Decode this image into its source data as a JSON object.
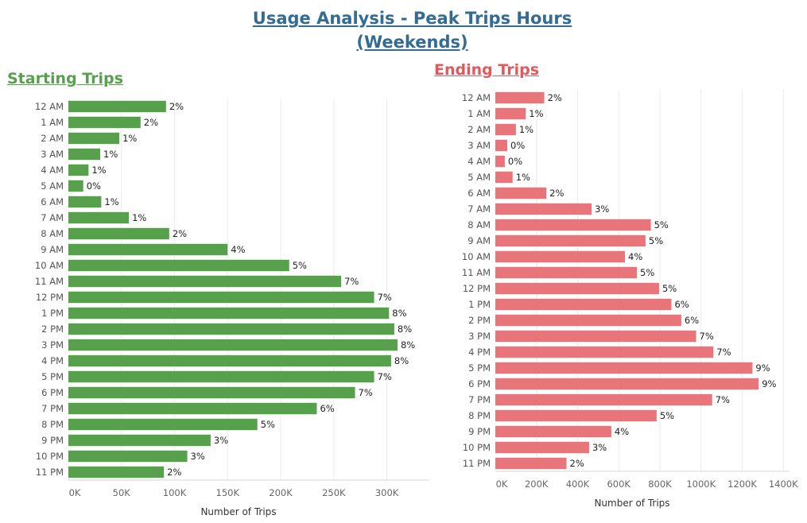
{
  "title_line1": "Usage Analysis - Peak Trips Hours",
  "title_line2": "(Weekends)",
  "colors": {
    "title": "#336b93",
    "starting": "#57a04c",
    "ending": "#e8757a"
  },
  "chart_data": [
    {
      "type": "bar",
      "orientation": "horizontal",
      "title": "Starting Trips",
      "xlabel": "Number of Trips",
      "xlim": [
        0,
        340000
      ],
      "xticks": [
        0,
        50000,
        100000,
        150000,
        200000,
        250000,
        300000
      ],
      "xtick_labels": [
        "0K",
        "50K",
        "100K",
        "150K",
        "200K",
        "250K",
        "300K"
      ],
      "categories": [
        "12 AM",
        "1 AM",
        "2 AM",
        "3 AM",
        "4 AM",
        "5 AM",
        "6 AM",
        "7 AM",
        "8 AM",
        "9 AM",
        "10 AM",
        "11 AM",
        "12 PM",
        "1 PM",
        "2 PM",
        "3 PM",
        "4 PM",
        "5 PM",
        "6 PM",
        "7 PM",
        "8 PM",
        "9 PM",
        "10 PM",
        "11 PM"
      ],
      "values": [
        92000,
        68000,
        48000,
        30000,
        19000,
        14000,
        31000,
        57000,
        95000,
        150000,
        208000,
        257000,
        288000,
        302000,
        307000,
        310000,
        304000,
        288000,
        270000,
        234000,
        178000,
        134000,
        112000,
        90000
      ],
      "labels": [
        "2%",
        "2%",
        "1%",
        "1%",
        "1%",
        "0%",
        "1%",
        "1%",
        "2%",
        "4%",
        "5%",
        "7%",
        "7%",
        "8%",
        "8%",
        "8%",
        "8%",
        "7%",
        "7%",
        "6%",
        "5%",
        "3%",
        "3%",
        "2%"
      ],
      "grid": true
    },
    {
      "type": "bar",
      "orientation": "horizontal",
      "title": "Ending Trips",
      "xlabel": "Number of Trips",
      "xlim": [
        0,
        1430000
      ],
      "xticks": [
        0,
        200000,
        400000,
        600000,
        800000,
        1000000,
        1200000,
        1400000
      ],
      "xtick_labels": [
        "0K",
        "200K",
        "400K",
        "600K",
        "800K",
        "1000K",
        "1200K",
        "1400K"
      ],
      "categories": [
        "12 AM",
        "1 AM",
        "2 AM",
        "3 AM",
        "4 AM",
        "5 AM",
        "6 AM",
        "7 AM",
        "8 AM",
        "9 AM",
        "10 AM",
        "11 AM",
        "12 PM",
        "1 PM",
        "2 PM",
        "3 PM",
        "4 PM",
        "5 PM",
        "6 PM",
        "7 PM",
        "8 PM",
        "9 PM",
        "10 PM",
        "11 PM"
      ],
      "values": [
        238000,
        148000,
        100000,
        58000,
        46000,
        84000,
        248000,
        468000,
        756000,
        730000,
        630000,
        688000,
        796000,
        856000,
        904000,
        976000,
        1060000,
        1250000,
        1280000,
        1054000,
        784000,
        564000,
        456000,
        346000
      ],
      "labels": [
        "2%",
        "1%",
        "1%",
        "0%",
        "0%",
        "1%",
        "2%",
        "3%",
        "5%",
        "5%",
        "4%",
        "5%",
        "5%",
        "6%",
        "6%",
        "7%",
        "7%",
        "9%",
        "9%",
        "7%",
        "5%",
        "4%",
        "3%",
        "2%"
      ],
      "grid": true
    }
  ]
}
